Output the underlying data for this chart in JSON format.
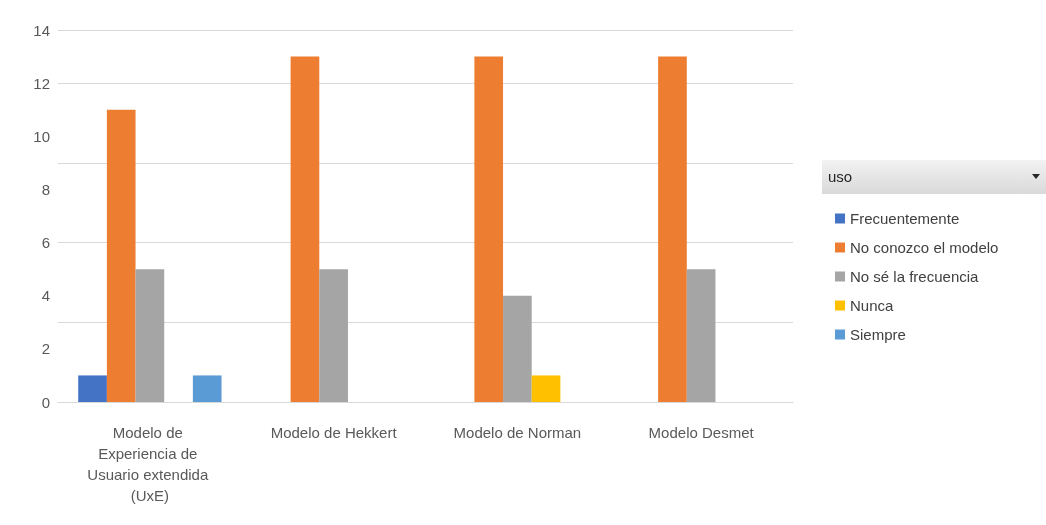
{
  "chart_data": {
    "type": "bar",
    "legend_title": "uso",
    "categories": [
      "Modelo de Experiencia de Usuario extendida (UxE)",
      "Modelo de Hekkert",
      "Modelo de Norman",
      "Modelo Desmet"
    ],
    "series": [
      {
        "name": "Frecuentemente",
        "color": "#4472c4",
        "values": [
          1,
          null,
          null,
          null
        ]
      },
      {
        "name": "No conozco el modelo",
        "color": "#ed7d31",
        "values": [
          11,
          13,
          13,
          13
        ]
      },
      {
        "name": "No sé la frecuencia",
        "color": "#a5a5a5",
        "values": [
          5,
          5,
          4,
          5
        ]
      },
      {
        "name": "Nunca",
        "color": "#ffc000",
        "values": [
          null,
          null,
          1,
          null
        ]
      },
      {
        "name": "Siempre",
        "color": "#5b9bd5",
        "values": [
          1,
          null,
          null,
          null
        ]
      }
    ],
    "ylim": [
      0,
      14
    ],
    "yticks": [
      0,
      2,
      4,
      6,
      8,
      10,
      12,
      14
    ],
    "grid": "y",
    "legend": "right"
  }
}
